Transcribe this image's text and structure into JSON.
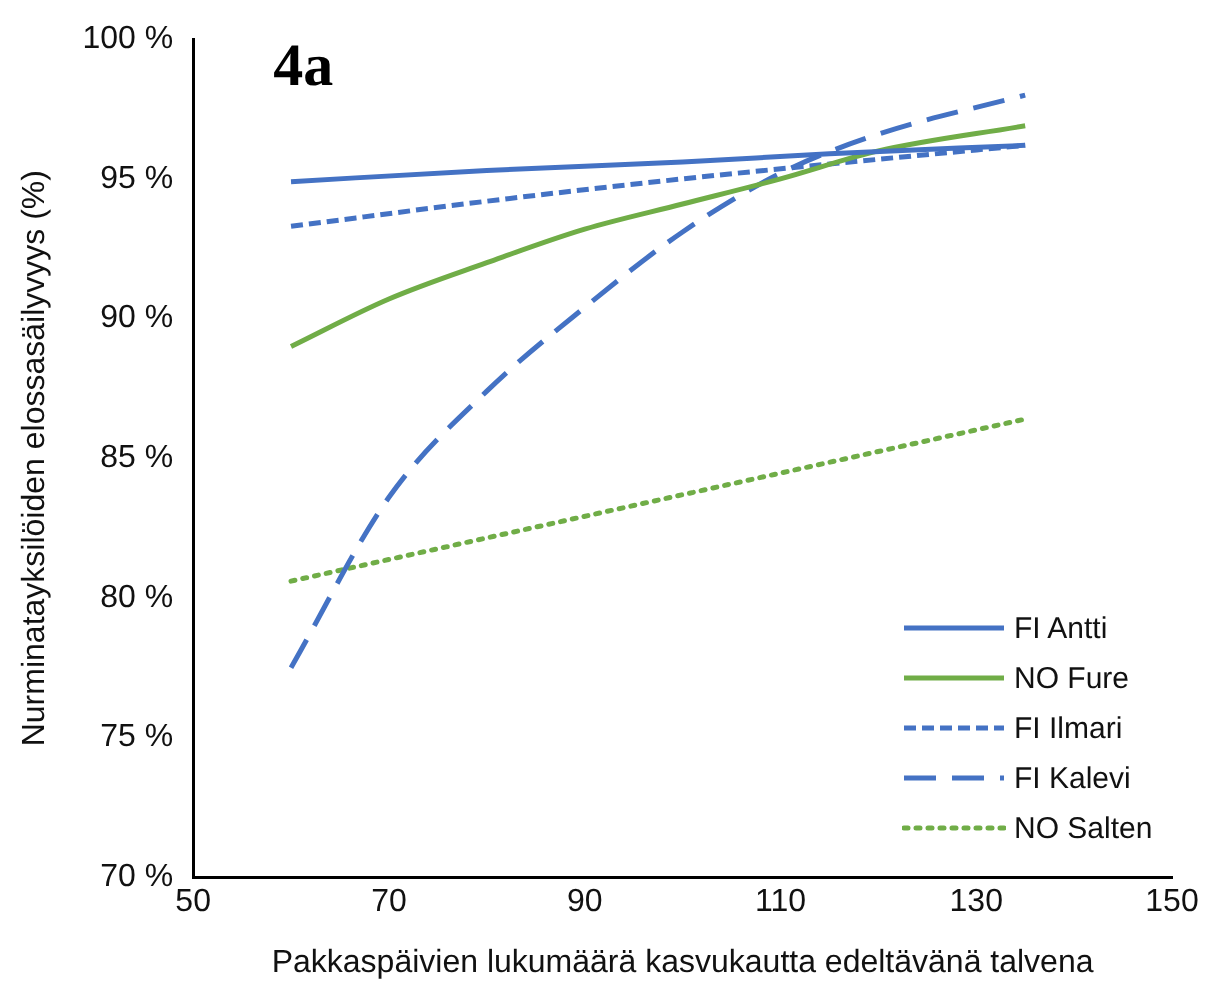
{
  "chart_data": {
    "type": "line",
    "title": "4a",
    "xlabel": "Pakkaspäivien lukumäärä kasvukautta edeltävänä talvena",
    "ylabel": "Nurminatayksilöiden elossasäilyvyys (%)",
    "xlim": [
      50,
      150
    ],
    "xticks": [
      50,
      70,
      90,
      110,
      130,
      150
    ],
    "ylim": [
      70,
      100
    ],
    "yticks": [
      {
        "value": 70,
        "label": "70 %"
      },
      {
        "value": 75,
        "label": "75 %"
      },
      {
        "value": 80,
        "label": "80 %"
      },
      {
        "value": 85,
        "label": "85 %"
      },
      {
        "value": 90,
        "label": "90 %"
      },
      {
        "value": 95,
        "label": "95 %"
      },
      {
        "value": 100,
        "label": "100 %"
      }
    ],
    "grid": false,
    "legend": "bottom right",
    "marker": "none",
    "series": [
      {
        "name": "FI Antti",
        "color": "#4472c4",
        "line_style": "solid",
        "x": [
          60,
          80,
          100,
          115,
          135
        ],
        "values": [
          94.9,
          95.3,
          95.6,
          95.9,
          96.2
        ]
      },
      {
        "name": "NO Fure",
        "color": "#70ad47",
        "line_style": "solid",
        "x": [
          60,
          70,
          80,
          90,
          100,
          110,
          120,
          135
        ],
        "values": [
          89.0,
          90.7,
          92.0,
          93.2,
          94.1,
          95.0,
          96.0,
          96.9
        ]
      },
      {
        "name": "FI Ilmari",
        "color": "#4472c4",
        "line_style": "dashed",
        "x": [
          60,
          80,
          100,
          120,
          135
        ],
        "values": [
          93.3,
          94.2,
          95.0,
          95.7,
          96.2
        ]
      },
      {
        "name": "FI Kalevi",
        "color": "#4472c4",
        "line_style": "long-dashed",
        "x": [
          60,
          70,
          80,
          90,
          100,
          110,
          120,
          135
        ],
        "values": [
          77.5,
          83.6,
          87.4,
          90.4,
          93.1,
          95.2,
          96.6,
          98.0
        ]
      },
      {
        "name": "NO Salten",
        "color": "#70ad47",
        "line_style": "dotted",
        "x": [
          60,
          135
        ],
        "values": [
          80.6,
          86.4
        ]
      }
    ]
  }
}
